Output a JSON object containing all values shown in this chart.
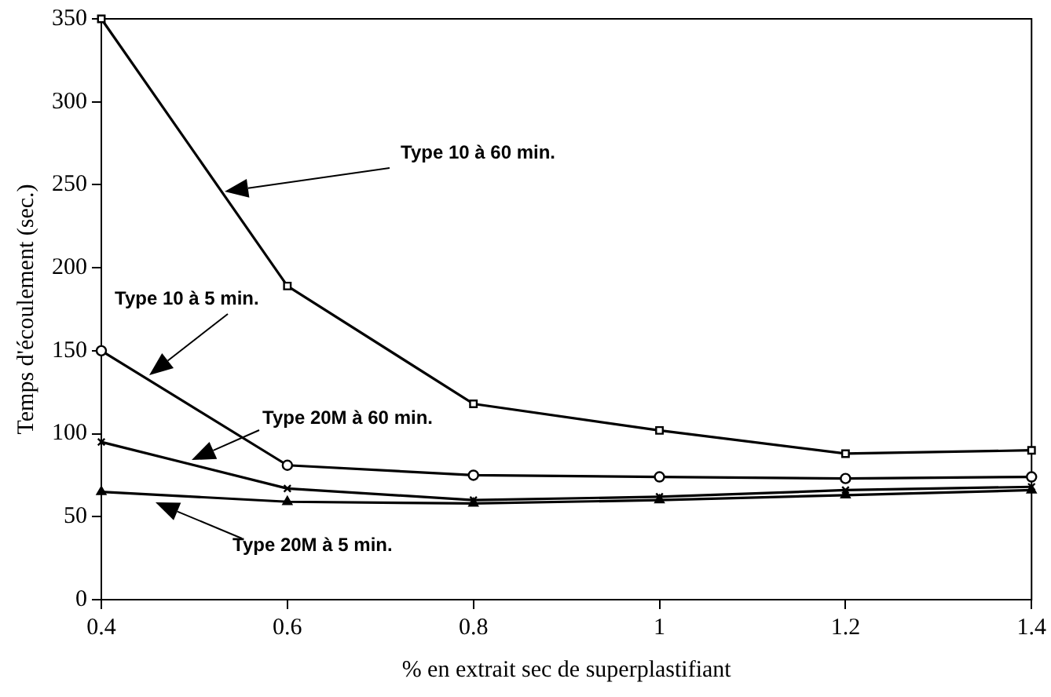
{
  "chart_data": {
    "type": "line",
    "xlabel": "% en extrait sec de superplastifiant",
    "ylabel": "Temps d'écoulement (sec.)",
    "x": [
      0.4,
      0.6,
      0.8,
      1.0,
      1.2,
      1.4
    ],
    "xlim": [
      0.4,
      1.4
    ],
    "xticks": [
      0.4,
      0.6,
      0.8,
      1,
      1.2,
      1.4
    ],
    "ylim": [
      0,
      350
    ],
    "yticks": [
      0,
      50,
      100,
      150,
      200,
      250,
      300,
      350
    ],
    "grid": false,
    "legend": false,
    "line_style": "solid",
    "series": [
      {
        "color": "#000000",
        "marker": "square",
        "values": [
          350,
          189,
          118,
          102,
          88,
          90
        ]
      },
      {
        "color": "#000000",
        "marker": "circle",
        "values": [
          150,
          81,
          75,
          74,
          73,
          74
        ]
      },
      {
        "color": "#000000",
        "marker": "cross",
        "values": [
          95,
          67,
          60,
          62,
          66,
          68
        ]
      },
      {
        "color": "#000000",
        "marker": "triangle",
        "values": [
          65,
          59,
          58,
          60,
          63,
          66
        ]
      }
    ],
    "annotations": [
      "Type 10 à 60 min.",
      "Type 10 à 5 min.",
      "Type 20M à 60 min.",
      "Type 20M à 5 min."
    ]
  }
}
